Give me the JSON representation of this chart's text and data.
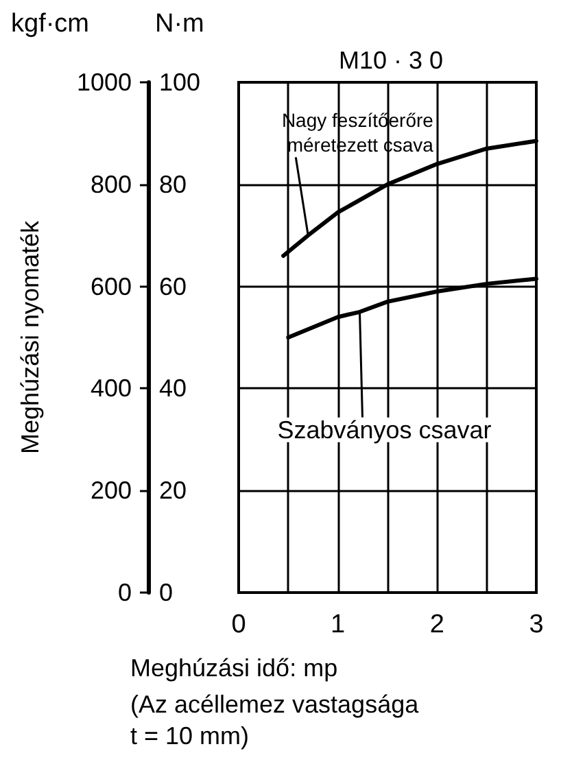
{
  "chart_data": {
    "type": "line",
    "title": "M10 · 3 0",
    "xlabel": "Meghúzási idő: mp",
    "ylabel": "Meghúzási nyomaték",
    "y2label": "N·m",
    "xlim": [
      0,
      3
    ],
    "xticks": [
      0,
      1,
      2,
      3
    ],
    "ylim": [
      0,
      1000
    ],
    "yticks": [
      0,
      200,
      400,
      600,
      800,
      {
        "value": 1000,
        "label": "1000"
      }
    ],
    "y2lim": [
      0,
      100
    ],
    "y2ticks": [
      0,
      20,
      40,
      60,
      80,
      100
    ],
    "grid": true,
    "marker": "none",
    "line_style": "solid",
    "series": [
      {
        "color": "#000000",
        "axis": "y2",
        "x": [
          0.45,
          0.7,
          1,
          1.5,
          2,
          2.5,
          3
        ],
        "values": [
          66,
          70,
          74.5,
          80,
          84,
          87,
          88.5
        ]
      },
      {
        "color": "#000000",
        "axis": "y2",
        "x": [
          0.5,
          1,
          1.22,
          1.5,
          2,
          2.5,
          3
        ],
        "values": [
          50,
          54,
          55,
          57,
          59,
          60.5,
          61.5
        ]
      }
    ],
    "annotations": [
      "kgf·cm",
      {
        "text": "Nagy feszítőerőre méretezett csava",
        "x": 0.7,
        "y": 700
      },
      {
        "text": "Szabványos csavar",
        "x": 1.22,
        "y": 550
      },
      "(Az acéllemez vastagsága t = 10 mm)"
    ]
  }
}
